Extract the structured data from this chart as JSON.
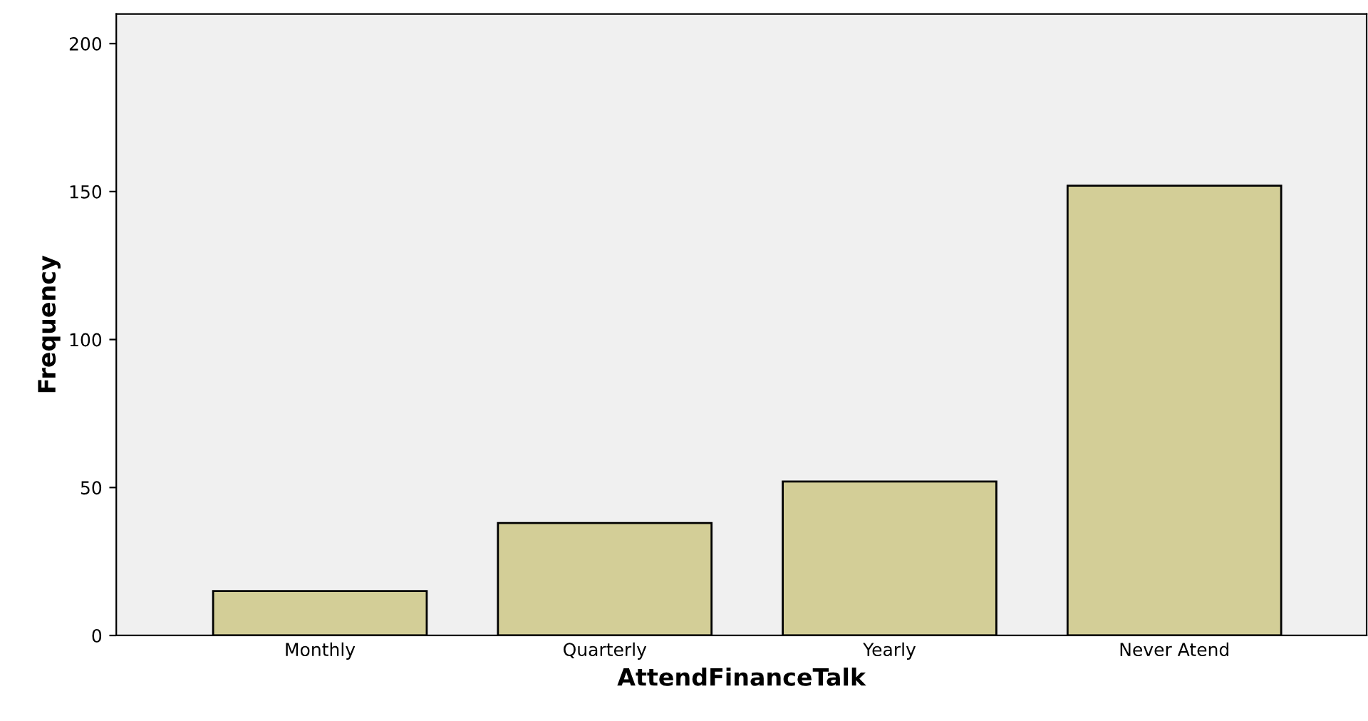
{
  "chart_data": {
    "type": "bar",
    "xlabel": "AttendFinanceTalk",
    "ylabel": "Frequency",
    "categories": [
      "Monthly",
      "Quarterly",
      "Yearly",
      "Never Atend"
    ],
    "values": [
      15,
      38,
      52,
      152
    ],
    "color": "#d3ce97",
    "ylim": [
      0,
      210
    ],
    "yticks": [
      0,
      50,
      100,
      150,
      200
    ],
    "grid": false,
    "legend": false
  }
}
